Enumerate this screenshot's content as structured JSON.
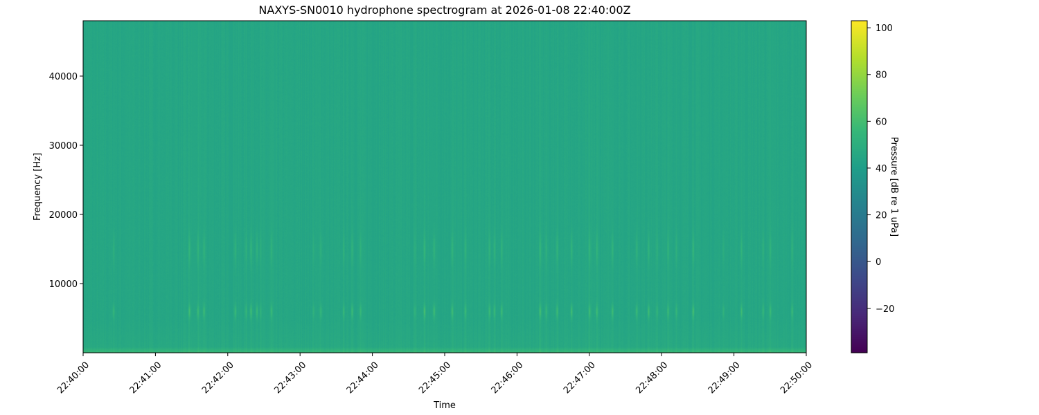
{
  "chart_data": {
    "type": "heatmap",
    "title": "NAXYS-SN0010 hydrophone spectrogram at 2026-01-08 22:40:00Z",
    "xlabel": "Time",
    "ylabel": "Frequency [Hz]",
    "x_ticks": [
      "22:40:00",
      "22:41:00",
      "22:42:00",
      "22:43:00",
      "22:44:00",
      "22:45:00",
      "22:46:00",
      "22:47:00",
      "22:48:00",
      "22:49:00",
      "22:50:00"
    ],
    "xlim": [
      "22:40:00",
      "22:50:00"
    ],
    "y_ticks": [
      10000,
      20000,
      30000,
      40000
    ],
    "ylim": [
      0,
      48000
    ],
    "colorbar": {
      "label": "Pressure [dB re 1 uPa]",
      "ticks": [
        -20,
        0,
        20,
        40,
        60,
        80,
        100
      ],
      "range": [
        -39,
        103
      ],
      "colormap": "viridis"
    },
    "background_level_db": 45,
    "low_frequency_band_db": 58,
    "event_bands_hz": [
      6000,
      15000
    ],
    "events": [
      "22:40:25",
      "22:41:28",
      "22:41:35",
      "22:41:40",
      "22:42:06",
      "22:42:15",
      "22:42:19",
      "22:42:24",
      "22:42:27",
      "22:42:36",
      "22:43:11",
      "22:43:17",
      "22:43:36",
      "22:43:43",
      "22:43:50",
      "22:44:35",
      "22:44:43",
      "22:44:51",
      "22:45:06",
      "22:45:17",
      "22:45:37",
      "22:45:41",
      "22:45:47",
      "22:46:19",
      "22:46:24",
      "22:46:33",
      "22:46:45",
      "22:47:00",
      "22:47:06",
      "22:47:19",
      "22:47:39",
      "22:47:49",
      "22:47:56",
      "22:48:05",
      "22:48:12",
      "22:48:26",
      "22:48:51",
      "22:49:06",
      "22:49:24",
      "22:49:30",
      "22:49:48"
    ]
  }
}
